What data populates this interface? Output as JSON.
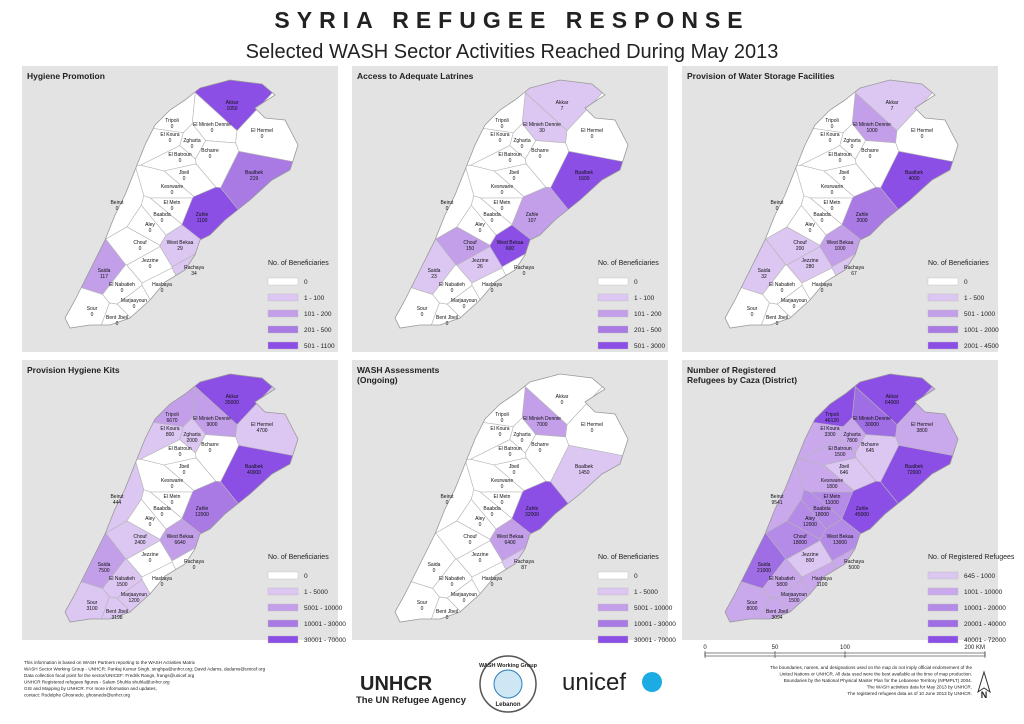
{
  "title": "SYRIA REFUGEE RESPONSE",
  "subtitle": "Selected WASH Sector Activities Reached During May 2013",
  "districts": [
    "Akkar",
    "Tripoli",
    "El Minieh Dennie",
    "El Hermel",
    "Zgharta",
    "El Koura",
    "Bcharre",
    "El Batroun",
    "Baalbek",
    "Jbeil",
    "Kesrwane",
    "Beirut",
    "El Metn",
    "Baabda",
    "Zahle",
    "Aley",
    "Chouf",
    "West Bekaa",
    "Jezzine",
    "Rachaya",
    "Saida",
    "El Nabatieh",
    "Hasbaya",
    "Marjaayoun",
    "Sour",
    "Bent Jbeil"
  ],
  "panels": [
    {
      "title_lines": [
        "Hygiene Promotion"
      ],
      "legend_title": "No. of Beneficiaries",
      "legend": [
        {
          "value": 0,
          "label": "0",
          "color": "#ffffff"
        },
        {
          "value": 100,
          "label": "1 - 100",
          "color": "#dcc6f2"
        },
        {
          "value": 200,
          "label": "101 - 200",
          "color": "#c39fea"
        },
        {
          "value": 500,
          "label": "201 - 500",
          "color": "#a97ae4"
        },
        {
          "value": 1100,
          "label": "501 - 1100",
          "color": "#8c4fe6"
        }
      ],
      "values": [
        1050,
        0,
        0,
        0,
        0,
        0,
        0,
        0,
        219,
        0,
        0,
        0,
        0,
        0,
        1100,
        0,
        0,
        29,
        0,
        34,
        117,
        0,
        0,
        0,
        0,
        0
      ]
    },
    {
      "title_lines": [
        "Access to Adequate Latrines"
      ],
      "legend_title": "No. of Beneficiaries",
      "legend": [
        {
          "value": 0,
          "label": "0",
          "color": "#ffffff"
        },
        {
          "value": 100,
          "label": "1 - 100",
          "color": "#dcc6f2"
        },
        {
          "value": 200,
          "label": "101 - 200",
          "color": "#c39fea"
        },
        {
          "value": 500,
          "label": "201 - 500",
          "color": "#a97ae4"
        },
        {
          "value": 3000,
          "label": "501 - 3000",
          "color": "#8c4fe6"
        }
      ],
      "values": [
        7,
        0,
        30,
        0,
        0,
        0,
        0,
        0,
        1600,
        0,
        0,
        0,
        0,
        0,
        107,
        0,
        150,
        600,
        26,
        0,
        23,
        0,
        0,
        0,
        0,
        0
      ]
    },
    {
      "title_lines": [
        "Provision of Water Storage Facilities"
      ],
      "legend_title": "No. of Beneficiaries",
      "legend": [
        {
          "value": 0,
          "label": "0",
          "color": "#ffffff"
        },
        {
          "value": 500,
          "label": "1 - 500",
          "color": "#dcc6f2"
        },
        {
          "value": 1000,
          "label": "501 - 1000",
          "color": "#c39fea"
        },
        {
          "value": 2000,
          "label": "1001 - 2000",
          "color": "#a97ae4"
        },
        {
          "value": 4500,
          "label": "2001 - 4500",
          "color": "#8c4fe6"
        }
      ],
      "values": [
        7,
        0,
        1000,
        0,
        0,
        0,
        0,
        0,
        4000,
        0,
        0,
        0,
        0,
        0,
        2000,
        0,
        200,
        1000,
        280,
        67,
        32,
        0,
        0,
        0,
        0,
        0
      ]
    },
    {
      "title_lines": [
        "Provision Hygiene Kits"
      ],
      "legend_title": "No. of Beneficiaries",
      "legend": [
        {
          "value": 0,
          "label": "0",
          "color": "#ffffff"
        },
        {
          "value": 5000,
          "label": "1 - 5000",
          "color": "#dcc6f2"
        },
        {
          "value": 10000,
          "label": "5001 - 10000",
          "color": "#c39fea"
        },
        {
          "value": 30000,
          "label": "10001 - 30000",
          "color": "#a97ae4"
        },
        {
          "value": 70000,
          "label": "30001 - 70000",
          "color": "#8c4fe6"
        }
      ],
      "values": [
        35000,
        6670,
        9000,
        4700,
        2000,
        800,
        0,
        0,
        40000,
        0,
        0,
        444,
        0,
        0,
        12000,
        0,
        2400,
        6640,
        0,
        0,
        7500,
        1500,
        0,
        1200,
        3100,
        3198
      ]
    },
    {
      "title_lines": [
        "WASH Assessments",
        "(Ongoing)"
      ],
      "legend_title": "No. of Beneficiaries",
      "legend": [
        {
          "value": 0,
          "label": "0",
          "color": "#ffffff"
        },
        {
          "value": 5000,
          "label": "1 - 5000",
          "color": "#dcc6f2"
        },
        {
          "value": 10000,
          "label": "5001 - 10000",
          "color": "#c39fea"
        },
        {
          "value": 30000,
          "label": "10001 - 30000",
          "color": "#a97ae4"
        },
        {
          "value": 70000,
          "label": "30001 - 70000",
          "color": "#8c4fe6"
        }
      ],
      "values": [
        0,
        0,
        7000,
        0,
        0,
        0,
        0,
        0,
        1450,
        0,
        0,
        0,
        0,
        0,
        32000,
        0,
        0,
        6400,
        0,
        87,
        0,
        0,
        0,
        0,
        0,
        0
      ]
    },
    {
      "title_lines": [
        "Number of Registered",
        "Refugees by Caza (District)"
      ],
      "legend_title": "No. of Registered Refugees",
      "legend": [
        {
          "value": 1000,
          "label": "645 - 1000",
          "color": "#dcc6f2"
        },
        {
          "value": 10000,
          "label": "1001 - 10000",
          "color": "#c9a9ec"
        },
        {
          "value": 20000,
          "label": "10001 - 20000",
          "color": "#b48be6"
        },
        {
          "value": 40000,
          "label": "20001 - 40000",
          "color": "#9f6de4"
        },
        {
          "value": 72000,
          "label": "40001 - 72000",
          "color": "#8c4fe6"
        }
      ],
      "values": [
        64000,
        46120,
        30000,
        3800,
        7800,
        3300,
        645,
        1500,
        72000,
        646,
        1800,
        9541,
        11000,
        18000,
        45000,
        12000,
        18000,
        13000,
        800,
        5000,
        21000,
        5800,
        1100,
        1500,
        8000,
        3094
      ]
    }
  ],
  "footer_left": [
    "This information is based on WASH Partners reporting to the WASH Activities Matrix",
    "WASH Sector Working Group - UNHCR: Pankaj Kumar Singh, singhpa@unhcr.org; David Adams, dadams@unicef.org",
    "Data collection focal point for the sector/UNICEF: Fredrik Rangs, frangs@unicef.org",
    "UNHCR Registered refugees figures - Salam Shuhla shuhla@unhcr.org",
    "GIS and Mapping by UNHCR. For more information and updates,",
    "contact: Rodolphe Ghosnedo, ghosnedo@unhcr.org"
  ],
  "footer_right": [
    "The boundaries, names, and designations used on the map do not imply official endorsement of the",
    "United Nations or UNHCR. All data used were the best available at the time of map production.",
    "Boundaries by the National Physical Master Plan for the Lebanese Territory (NPMPLT) 2004.",
    "The WASH activities data for May 2013 by UNHCR.",
    "The registered refugees data as of 10 June 2013 by UNHCR."
  ],
  "logos": {
    "unhcr": "UNHCR",
    "unhcr_tagline": "The UN Refugee Agency",
    "wash_top": "WASH Working Group",
    "wash_bottom": "Lebanon",
    "unicef": "unicef"
  },
  "scale_bar": {
    "ticks": [
      0,
      50,
      100,
      {
        "value": 200,
        "label": "200 KM"
      }
    ]
  },
  "north": "N"
}
